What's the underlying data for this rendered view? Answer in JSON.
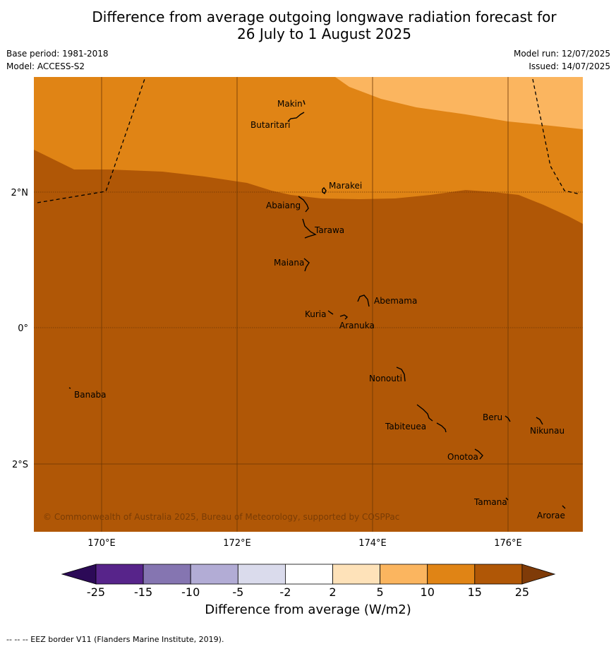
{
  "header": {
    "title_line1": "Difference from average outgoing longwave radiation forecast for",
    "title_line2": "26 July to 1 August 2025",
    "base_period": "Base period: 1981-2018",
    "model": "Model: ACCESS-S2",
    "model_run": "Model run: 12/07/2025",
    "issued": "Issued: 14/07/2025"
  },
  "map": {
    "lon_labels": [
      "170°E",
      "172°E",
      "174°E",
      "176°E"
    ],
    "lat_labels": [
      "2°N",
      "0°",
      "2°S"
    ],
    "copyright": "© Commonwealth of Australia 2025, Bureau of Meteorology, supported by COSPPac",
    "islands": [
      "Makin",
      "Butaritari",
      "Marakei",
      "Abaiang",
      "Tarawa",
      "Maiana",
      "Abemama",
      "Kuria",
      "Aranuka",
      "Nonouti",
      "Banaba",
      "Beru",
      "Nikunau",
      "Tabiteuea",
      "Onotoa",
      "Tamana",
      "Arorae"
    ],
    "colors": {
      "band_5_10": "#fbb55f",
      "band_10_15": "#e08415",
      "band_15_25": "#b05706"
    }
  },
  "colorbar": {
    "title": "Difference from average (W/m2)",
    "ticks": [
      "-25",
      "-15",
      "-10",
      "-5",
      "-2",
      "2",
      "5",
      "10",
      "15",
      "25"
    ],
    "colors": [
      "#2c0a57",
      "#57248a",
      "#8575b1",
      "#b2acd5",
      "#dadbec",
      "#ffffff",
      "#fee2b9",
      "#fbb55f",
      "#e08415",
      "#b05706",
      "#7f3b08"
    ]
  },
  "footer": "--  --  -- EEZ border V11 (Flanders Marine Institute, 2019)."
}
